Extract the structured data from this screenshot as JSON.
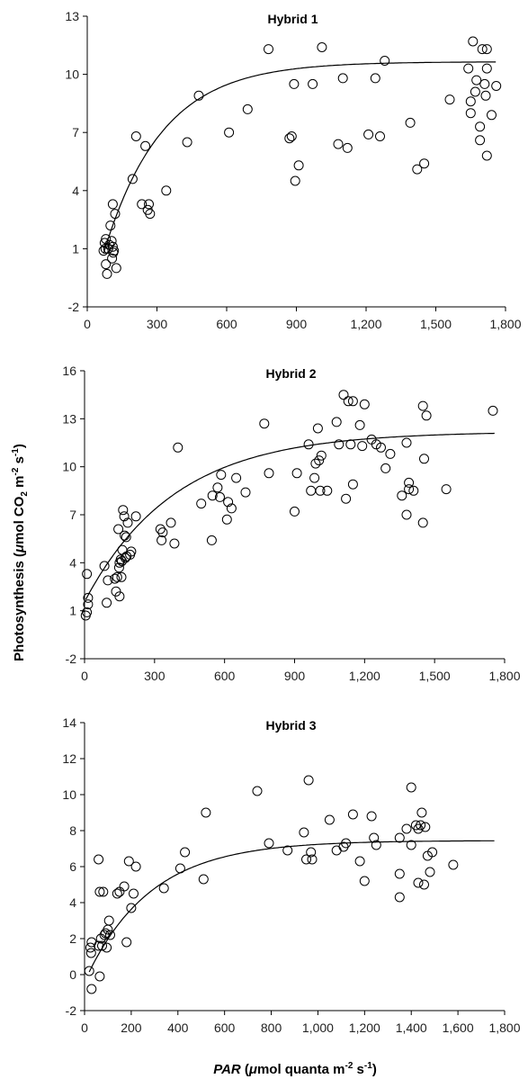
{
  "figure": {
    "ylabel_main": "Photosynthesis (",
    "ylabel_mu": "μ",
    "ylabel_unit": "mol CO",
    "ylabel_sub": "2",
    "ylabel_m": " m",
    "ylabel_sup1": "-2",
    "ylabel_s": " s",
    "ylabel_sup2": "-1",
    "ylabel_close": ")",
    "xlabel_par": "PAR",
    "xlabel_open": " (",
    "xlabel_mu": "μ",
    "xlabel_unit": "mol quanta  m",
    "xlabel_sup1": "-2",
    "xlabel_s": " s",
    "xlabel_sup2": "-1",
    "xlabel_close": ")"
  },
  "chart_data": [
    {
      "type": "scatter",
      "title": "Hybrid 1",
      "xlim": [
        0,
        1800
      ],
      "ylim": [
        -2,
        13
      ],
      "xticks": [
        0,
        300,
        600,
        900,
        1200,
        1500,
        1800
      ],
      "xtick_labels": [
        "0",
        "300",
        "600",
        "900",
        "1,200",
        "1,500",
        "1,800"
      ],
      "yticks": [
        -2,
        1,
        4,
        7,
        10,
        13
      ],
      "ytick_labels": [
        "-2",
        "1",
        "4",
        "7",
        "10",
        "13"
      ],
      "points": [
        [
          70,
          0.9
        ],
        [
          75,
          1.3
        ],
        [
          78,
          1.0
        ],
        [
          80,
          1.5
        ],
        [
          80,
          0.2
        ],
        [
          85,
          -0.3
        ],
        [
          90,
          1.0
        ],
        [
          95,
          1.2
        ],
        [
          100,
          2.2
        ],
        [
          105,
          1.4
        ],
        [
          107,
          0.5
        ],
        [
          110,
          1.1
        ],
        [
          110,
          3.3
        ],
        [
          112,
          0.8
        ],
        [
          115,
          0.9
        ],
        [
          120,
          2.8
        ],
        [
          125,
          0.0
        ],
        [
          195,
          4.6
        ],
        [
          210,
          6.8
        ],
        [
          235,
          3.3
        ],
        [
          250,
          6.3
        ],
        [
          260,
          3.0
        ],
        [
          265,
          3.3
        ],
        [
          270,
          2.8
        ],
        [
          340,
          4.0
        ],
        [
          430,
          6.5
        ],
        [
          480,
          8.9
        ],
        [
          610,
          7.0
        ],
        [
          690,
          8.2
        ],
        [
          780,
          11.3
        ],
        [
          870,
          6.7
        ],
        [
          880,
          6.8
        ],
        [
          890,
          9.5
        ],
        [
          895,
          4.5
        ],
        [
          910,
          5.3
        ],
        [
          970,
          9.5
        ],
        [
          1010,
          11.4
        ],
        [
          1080,
          6.4
        ],
        [
          1100,
          9.8
        ],
        [
          1120,
          6.2
        ],
        [
          1210,
          6.9
        ],
        [
          1240,
          9.8
        ],
        [
          1260,
          6.8
        ],
        [
          1280,
          10.7
        ],
        [
          1390,
          7.5
        ],
        [
          1420,
          5.1
        ],
        [
          1450,
          5.4
        ],
        [
          1560,
          8.7
        ],
        [
          1640,
          10.3
        ],
        [
          1650,
          8.6
        ],
        [
          1650,
          8.0
        ],
        [
          1660,
          11.7
        ],
        [
          1670,
          9.1
        ],
        [
          1675,
          9.7
        ],
        [
          1690,
          7.3
        ],
        [
          1690,
          6.6
        ],
        [
          1700,
          11.3
        ],
        [
          1710,
          9.5
        ],
        [
          1715,
          8.9
        ],
        [
          1720,
          11.3
        ],
        [
          1720,
          10.3
        ],
        [
          1720,
          5.8
        ],
        [
          1740,
          7.9
        ],
        [
          1760,
          9.4
        ]
      ],
      "curve": {
        "pmax": 9.9,
        "k": 0.004,
        "offset": 0.75,
        "x0": 70
      }
    },
    {
      "type": "scatter",
      "title": "Hybrid 2",
      "xlim": [
        0,
        1800
      ],
      "ylim": [
        -2,
        16
      ],
      "xticks": [
        0,
        300,
        600,
        900,
        1200,
        1500,
        1800
      ],
      "xtick_labels": [
        "0",
        "300",
        "600",
        "900",
        "1,200",
        "1,500",
        "1,800"
      ],
      "yticks": [
        -2,
        1,
        4,
        7,
        10,
        13,
        16
      ],
      "ytick_labels": [
        "-2",
        "1",
        "4",
        "7",
        "10",
        "13",
        "16"
      ],
      "points": [
        [
          5,
          0.7
        ],
        [
          10,
          3.3
        ],
        [
          10,
          0.9
        ],
        [
          15,
          1.8
        ],
        [
          15,
          1.4
        ],
        [
          85,
          3.8
        ],
        [
          95,
          1.5
        ],
        [
          100,
          2.9
        ],
        [
          130,
          3.0
        ],
        [
          135,
          2.2
        ],
        [
          140,
          3.1
        ],
        [
          145,
          6.1
        ],
        [
          148,
          3.7
        ],
        [
          150,
          4.0
        ],
        [
          150,
          1.9
        ],
        [
          155,
          4.2
        ],
        [
          158,
          3.1
        ],
        [
          160,
          4.1
        ],
        [
          162,
          4.8
        ],
        [
          165,
          7.3
        ],
        [
          170,
          6.9
        ],
        [
          172,
          5.7
        ],
        [
          175,
          4.3
        ],
        [
          178,
          5.6
        ],
        [
          180,
          4.4
        ],
        [
          185,
          6.5
        ],
        [
          195,
          4.5
        ],
        [
          200,
          4.7
        ],
        [
          220,
          6.9
        ],
        [
          325,
          6.1
        ],
        [
          330,
          5.4
        ],
        [
          335,
          5.9
        ],
        [
          370,
          6.5
        ],
        [
          385,
          5.2
        ],
        [
          400,
          11.2
        ],
        [
          500,
          7.7
        ],
        [
          545,
          5.4
        ],
        [
          548,
          8.2
        ],
        [
          570,
          8.7
        ],
        [
          580,
          8.1
        ],
        [
          585,
          9.5
        ],
        [
          610,
          6.7
        ],
        [
          615,
          7.8
        ],
        [
          630,
          7.4
        ],
        [
          650,
          9.3
        ],
        [
          690,
          8.4
        ],
        [
          770,
          12.7
        ],
        [
          790,
          9.6
        ],
        [
          900,
          7.2
        ],
        [
          910,
          9.6
        ],
        [
          960,
          11.4
        ],
        [
          970,
          8.5
        ],
        [
          985,
          9.3
        ],
        [
          990,
          10.2
        ],
        [
          1000,
          12.4
        ],
        [
          1005,
          10.4
        ],
        [
          1010,
          8.5
        ],
        [
          1015,
          10.7
        ],
        [
          1040,
          8.5
        ],
        [
          1080,
          12.8
        ],
        [
          1090,
          11.4
        ],
        [
          1110,
          14.5
        ],
        [
          1120,
          8.0
        ],
        [
          1130,
          14.1
        ],
        [
          1140,
          11.4
        ],
        [
          1150,
          8.9
        ],
        [
          1150,
          14.1
        ],
        [
          1180,
          12.6
        ],
        [
          1190,
          11.3
        ],
        [
          1200,
          13.9
        ],
        [
          1230,
          11.7
        ],
        [
          1250,
          11.4
        ],
        [
          1270,
          11.2
        ],
        [
          1290,
          9.9
        ],
        [
          1310,
          10.8
        ],
        [
          1360,
          8.2
        ],
        [
          1380,
          7.0
        ],
        [
          1390,
          8.6
        ],
        [
          1380,
          11.5
        ],
        [
          1390,
          9.0
        ],
        [
          1410,
          8.5
        ],
        [
          1450,
          6.5
        ],
        [
          1450,
          13.8
        ],
        [
          1455,
          10.5
        ],
        [
          1465,
          13.2
        ],
        [
          1550,
          8.6
        ],
        [
          1750,
          13.5
        ]
      ],
      "curve": {
        "pmax": 10.5,
        "k": 0.0026,
        "offset": 1.7,
        "x0": 5
      }
    },
    {
      "type": "scatter",
      "title": "Hybrid 3",
      "xlim": [
        0,
        1800
      ],
      "ylim": [
        -2,
        14
      ],
      "xticks": [
        0,
        200,
        400,
        600,
        800,
        1000,
        1200,
        1400,
        1600,
        1800
      ],
      "xtick_labels": [
        "0",
        "200",
        "400",
        "600",
        "800",
        "1,000",
        "1,200",
        "1,400",
        "1,600",
        "1,800"
      ],
      "yticks": [
        -2,
        0,
        2,
        4,
        6,
        8,
        10,
        12,
        14
      ],
      "ytick_labels": [
        "-2",
        "0",
        "2",
        "4",
        "6",
        "8",
        "10",
        "12",
        "14"
      ],
      "points": [
        [
          20,
          0.2
        ],
        [
          25,
          1.5
        ],
        [
          28,
          1.2
        ],
        [
          30,
          -0.8
        ],
        [
          30,
          1.8
        ],
        [
          60,
          6.4
        ],
        [
          60,
          1.6
        ],
        [
          65,
          -0.1
        ],
        [
          65,
          4.6
        ],
        [
          70,
          2.0
        ],
        [
          75,
          1.6
        ],
        [
          80,
          4.6
        ],
        [
          85,
          2.2
        ],
        [
          90,
          2.3
        ],
        [
          95,
          1.5
        ],
        [
          100,
          2.5
        ],
        [
          105,
          3.0
        ],
        [
          110,
          2.2
        ],
        [
          140,
          4.5
        ],
        [
          150,
          4.6
        ],
        [
          170,
          4.9
        ],
        [
          180,
          1.8
        ],
        [
          190,
          6.3
        ],
        [
          200,
          3.7
        ],
        [
          210,
          4.5
        ],
        [
          220,
          6.0
        ],
        [
          340,
          4.8
        ],
        [
          410,
          5.9
        ],
        [
          430,
          6.8
        ],
        [
          510,
          5.3
        ],
        [
          520,
          9.0
        ],
        [
          740,
          10.2
        ],
        [
          790,
          7.3
        ],
        [
          870,
          6.9
        ],
        [
          940,
          7.9
        ],
        [
          950,
          6.4
        ],
        [
          960,
          10.8
        ],
        [
          970,
          6.8
        ],
        [
          975,
          6.4
        ],
        [
          1050,
          8.6
        ],
        [
          1080,
          6.9
        ],
        [
          1110,
          7.1
        ],
        [
          1120,
          7.3
        ],
        [
          1150,
          8.9
        ],
        [
          1180,
          6.3
        ],
        [
          1200,
          5.2
        ],
        [
          1230,
          8.8
        ],
        [
          1240,
          7.6
        ],
        [
          1250,
          7.2
        ],
        [
          1350,
          7.6
        ],
        [
          1350,
          5.6
        ],
        [
          1350,
          4.3
        ],
        [
          1380,
          8.1
        ],
        [
          1400,
          10.4
        ],
        [
          1400,
          7.2
        ],
        [
          1420,
          8.3
        ],
        [
          1430,
          8.1
        ],
        [
          1430,
          5.1
        ],
        [
          1440,
          8.3
        ],
        [
          1445,
          9.0
        ],
        [
          1455,
          5.0
        ],
        [
          1460,
          8.2
        ],
        [
          1470,
          6.6
        ],
        [
          1480,
          5.7
        ],
        [
          1490,
          6.8
        ],
        [
          1580,
          6.1
        ]
      ],
      "curve": {
        "pmax": 7.3,
        "k": 0.0036,
        "offset": 0.15,
        "x0": 20
      }
    }
  ]
}
